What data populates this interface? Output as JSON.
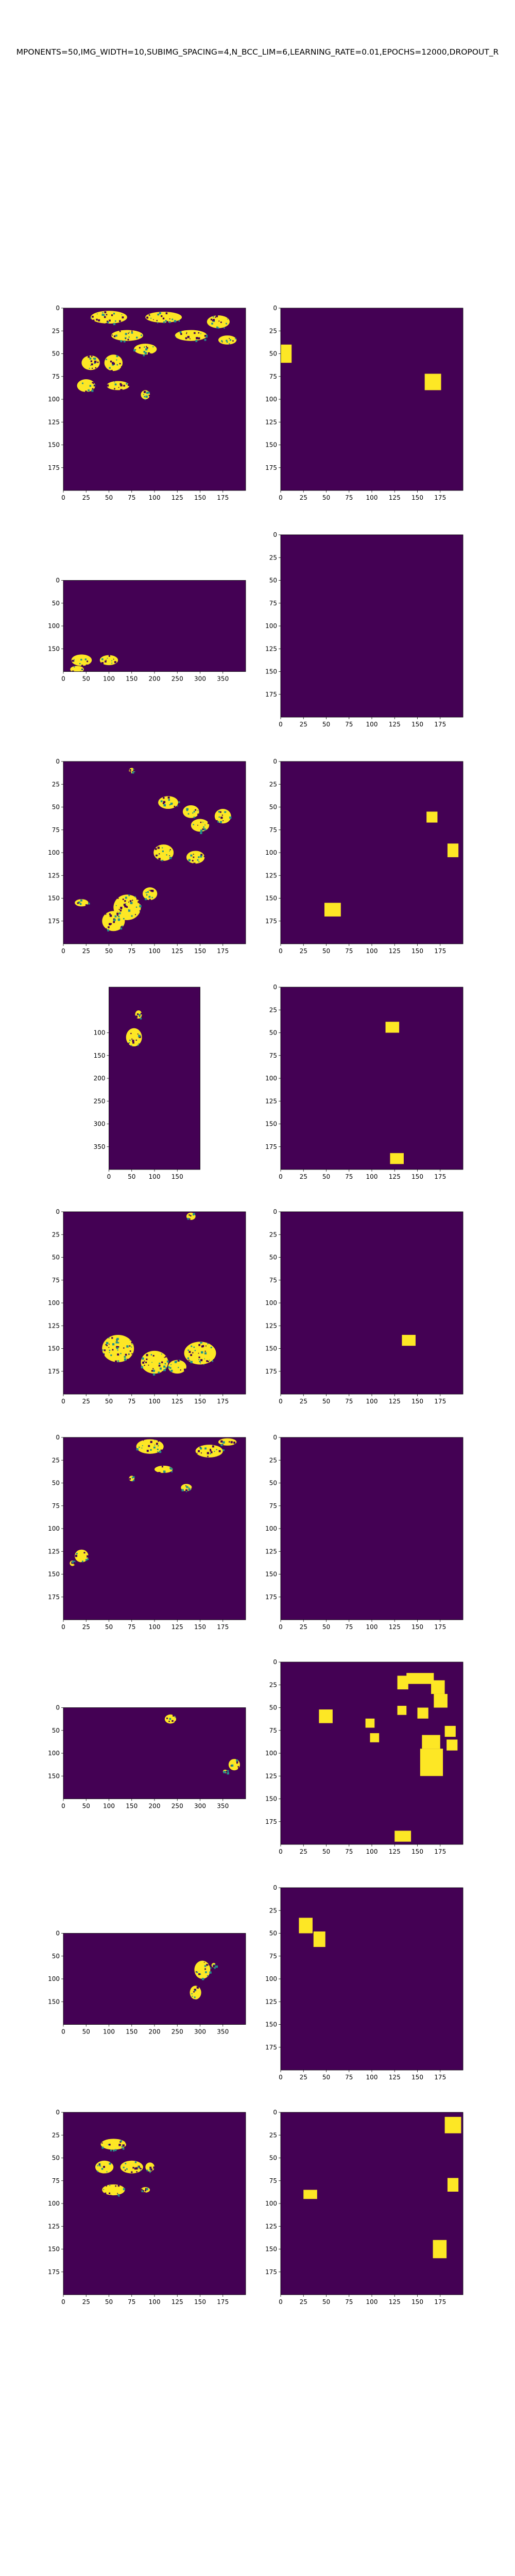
{
  "figure": {
    "suptitle": "MPONENTS=50,IMG_WIDTH=10,SUBIMG_SPACING=4,N_BCC_LIM=6,LEARNING_RATE=0.01,EPOCHS=12000,DROPOUT_R",
    "colors": {
      "background_cell": "#440154",
      "foreground_cell": "#fde725",
      "mid_cell": "#21918c"
    }
  },
  "chart_data": [
    {
      "type": "heatmap",
      "row": 1,
      "panel": "left",
      "xlim": [
        0,
        200
      ],
      "ylim": [
        200,
        0
      ],
      "xticks": [
        "0",
        "25",
        "50",
        "75",
        "100",
        "125",
        "150",
        "175"
      ],
      "yticks": [
        "0",
        "25",
        "50",
        "75",
        "100",
        "125",
        "150",
        "175"
      ],
      "blobs": [
        [
          50,
          10,
          40,
          14
        ],
        [
          110,
          10,
          40,
          12
        ],
        [
          170,
          15,
          25,
          14
        ],
        [
          70,
          30,
          35,
          12
        ],
        [
          140,
          30,
          35,
          12
        ],
        [
          180,
          35,
          20,
          10
        ],
        [
          30,
          60,
          20,
          16
        ],
        [
          55,
          60,
          20,
          18
        ],
        [
          90,
          45,
          25,
          12
        ],
        [
          25,
          85,
          20,
          14
        ],
        [
          60,
          85,
          25,
          10
        ],
        [
          90,
          95,
          10,
          10
        ]
      ]
    },
    {
      "type": "heatmap",
      "row": 1,
      "panel": "right",
      "xlim": [
        0,
        200
      ],
      "ylim": [
        200,
        0
      ],
      "xticks": [
        "0",
        "25",
        "50",
        "75",
        "100",
        "125",
        "150",
        "175"
      ],
      "yticks": [
        "0",
        "25",
        "50",
        "75",
        "100",
        "125",
        "150",
        "175"
      ],
      "rects": [
        [
          0,
          40,
          12,
          20
        ],
        [
          158,
          72,
          18,
          18
        ]
      ]
    },
    {
      "type": "heatmap",
      "row": 2,
      "panel": "left",
      "xlim": [
        0,
        400
      ],
      "ylim": [
        200,
        0
      ],
      "xticks": [
        "0",
        "50",
        "100",
        "150",
        "200",
        "250",
        "300",
        "350"
      ],
      "yticks": [
        "0",
        "50",
        "100",
        "150"
      ],
      "blobs": [
        [
          40,
          175,
          45,
          25
        ],
        [
          100,
          175,
          40,
          22
        ],
        [
          30,
          195,
          30,
          15
        ]
      ]
    },
    {
      "type": "heatmap",
      "row": 2,
      "panel": "right",
      "xlim": [
        0,
        200
      ],
      "ylim": [
        200,
        0
      ],
      "xticks": [
        "0",
        "25",
        "50",
        "75",
        "100",
        "125",
        "150",
        "175"
      ],
      "yticks": [
        "0",
        "25",
        "50",
        "75",
        "100",
        "125",
        "150",
        "175"
      ],
      "rects": []
    },
    {
      "type": "heatmap",
      "row": 3,
      "panel": "left",
      "xlim": [
        0,
        200
      ],
      "ylim": [
        200,
        0
      ],
      "xticks": [
        "0",
        "25",
        "50",
        "75",
        "100",
        "125",
        "150",
        "175"
      ],
      "yticks": [
        "0",
        "25",
        "50",
        "75",
        "100",
        "125",
        "150",
        "175"
      ],
      "blobs": [
        [
          75,
          10,
          6,
          6
        ],
        [
          115,
          45,
          22,
          14
        ],
        [
          140,
          55,
          18,
          14
        ],
        [
          175,
          60,
          18,
          16
        ],
        [
          110,
          100,
          22,
          18
        ],
        [
          145,
          105,
          20,
          14
        ],
        [
          150,
          70,
          20,
          14
        ],
        [
          70,
          160,
          30,
          28
        ],
        [
          55,
          175,
          25,
          22
        ],
        [
          20,
          155,
          15,
          8
        ],
        [
          95,
          145,
          16,
          14
        ]
      ]
    },
    {
      "type": "heatmap",
      "row": 3,
      "panel": "right",
      "xlim": [
        0,
        200
      ],
      "ylim": [
        200,
        0
      ],
      "xticks": [
        "0",
        "25",
        "50",
        "75",
        "100",
        "125",
        "150",
        "175"
      ],
      "yticks": [
        "0",
        "25",
        "50",
        "75",
        "100",
        "125",
        "150",
        "175"
      ],
      "rects": [
        [
          160,
          55,
          12,
          12
        ],
        [
          183,
          90,
          12,
          15
        ],
        [
          48,
          155,
          18,
          15
        ]
      ]
    },
    {
      "type": "heatmap",
      "row": 4,
      "panel": "left",
      "xlim": [
        0,
        200
      ],
      "ylim": [
        400,
        0
      ],
      "xticks": [
        "0",
        "50",
        "100",
        "150"
      ],
      "yticks": [
        "100",
        "150",
        "200",
        "250",
        "300",
        "350"
      ],
      "blobs": [
        [
          55,
          110,
          35,
          40
        ],
        [
          65,
          60,
          15,
          18
        ]
      ]
    },
    {
      "type": "heatmap",
      "row": 4,
      "panel": "right",
      "xlim": [
        0,
        200
      ],
      "ylim": [
        200,
        0
      ],
      "xticks": [
        "0",
        "25",
        "50",
        "75",
        "100",
        "125",
        "150",
        "175"
      ],
      "yticks": [
        "0",
        "25",
        "50",
        "75",
        "100",
        "125",
        "150",
        "175"
      ],
      "rects": [
        [
          115,
          38,
          15,
          12
        ],
        [
          120,
          182,
          15,
          12
        ]
      ]
    },
    {
      "type": "heatmap",
      "row": 5,
      "panel": "left",
      "xlim": [
        0,
        200
      ],
      "ylim": [
        200,
        0
      ],
      "xticks": [
        "0",
        "25",
        "50",
        "75",
        "100",
        "125",
        "150",
        "175"
      ],
      "yticks": [
        "0",
        "25",
        "50",
        "75",
        "100",
        "125",
        "150",
        "175"
      ],
      "blobs": [
        [
          140,
          5,
          10,
          8
        ],
        [
          60,
          150,
          35,
          30
        ],
        [
          100,
          165,
          30,
          25
        ],
        [
          150,
          155,
          35,
          25
        ],
        [
          125,
          170,
          20,
          15
        ]
      ]
    },
    {
      "type": "heatmap",
      "row": 5,
      "panel": "right",
      "xlim": [
        0,
        200
      ],
      "ylim": [
        200,
        0
      ],
      "xticks": [
        "0",
        "25",
        "50",
        "75",
        "100",
        "125",
        "150",
        "175"
      ],
      "yticks": [
        "0",
        "25",
        "50",
        "75",
        "100",
        "125",
        "150",
        "175"
      ],
      "rects": [
        [
          133,
          135,
          15,
          12
        ]
      ]
    },
    {
      "type": "heatmap",
      "row": 6,
      "panel": "left",
      "xlim": [
        0,
        200
      ],
      "ylim": [
        200,
        0
      ],
      "xticks": [
        "0",
        "25",
        "50",
        "75",
        "100",
        "125",
        "150",
        "175"
      ],
      "yticks": [
        "0",
        "25",
        "50",
        "75",
        "100",
        "125",
        "150",
        "175"
      ],
      "blobs": [
        [
          95,
          10,
          30,
          16
        ],
        [
          160,
          15,
          30,
          14
        ],
        [
          110,
          35,
          20,
          8
        ],
        [
          135,
          55,
          12,
          8
        ],
        [
          75,
          45,
          6,
          6
        ],
        [
          20,
          130,
          15,
          14
        ],
        [
          10,
          138,
          6,
          6
        ],
        [
          180,
          5,
          20,
          8
        ]
      ]
    },
    {
      "type": "heatmap",
      "row": 6,
      "panel": "right",
      "xlim": [
        0,
        200
      ],
      "ylim": [
        200,
        0
      ],
      "xticks": [
        "0",
        "25",
        "50",
        "75",
        "100",
        "125",
        "150",
        "175"
      ],
      "yticks": [
        "0",
        "25",
        "50",
        "75",
        "100",
        "125",
        "150",
        "175"
      ],
      "rects": []
    },
    {
      "type": "heatmap",
      "row": 7,
      "panel": "left",
      "xlim": [
        0,
        400
      ],
      "ylim": [
        200,
        0
      ],
      "xticks": [
        "0",
        "50",
        "100",
        "150",
        "200",
        "250",
        "300",
        "350"
      ],
      "yticks": [
        "0",
        "50",
        "100",
        "150"
      ],
      "blobs": [
        [
          235,
          25,
          25,
          20
        ],
        [
          375,
          125,
          25,
          25
        ],
        [
          355,
          140,
          10,
          8
        ]
      ]
    },
    {
      "type": "heatmap",
      "row": 7,
      "panel": "right",
      "xlim": [
        0,
        200
      ],
      "ylim": [
        200,
        0
      ],
      "xticks": [
        "0",
        "25",
        "50",
        "75",
        "100",
        "125",
        "150",
        "175"
      ],
      "yticks": [
        "0",
        "25",
        "50",
        "75",
        "100",
        "125",
        "150",
        "175"
      ],
      "rects": [
        [
          42,
          52,
          15,
          15
        ],
        [
          93,
          62,
          10,
          10
        ],
        [
          98,
          78,
          10,
          10
        ],
        [
          128,
          48,
          10,
          10
        ],
        [
          138,
          12,
          30,
          12
        ],
        [
          128,
          15,
          12,
          15
        ],
        [
          165,
          20,
          15,
          15
        ],
        [
          168,
          35,
          15,
          15
        ],
        [
          150,
          50,
          12,
          12
        ],
        [
          155,
          80,
          20,
          15
        ],
        [
          153,
          95,
          25,
          30
        ],
        [
          180,
          70,
          12,
          12
        ],
        [
          182,
          85,
          12,
          12
        ],
        [
          125,
          185,
          18,
          12
        ]
      ]
    },
    {
      "type": "heatmap",
      "row": 8,
      "panel": "left",
      "xlim": [
        0,
        400
      ],
      "ylim": [
        200,
        0
      ],
      "xticks": [
        "0",
        "50",
        "100",
        "150",
        "200",
        "250",
        "300",
        "350"
      ],
      "yticks": [
        "0",
        "50",
        "100",
        "150"
      ],
      "blobs": [
        [
          305,
          80,
          35,
          40
        ],
        [
          290,
          130,
          25,
          30
        ],
        [
          330,
          70,
          10,
          10
        ]
      ]
    },
    {
      "type": "heatmap",
      "row": 8,
      "panel": "right",
      "xlim": [
        0,
        200
      ],
      "ylim": [
        200,
        0
      ],
      "xticks": [
        "0",
        "25",
        "50",
        "75",
        "100",
        "125",
        "150",
        "175"
      ],
      "yticks": [
        "0",
        "25",
        "50",
        "75",
        "100",
        "125",
        "150",
        "175"
      ],
      "rects": [
        [
          20,
          33,
          15,
          17
        ],
        [
          36,
          48,
          13,
          17
        ]
      ]
    },
    {
      "type": "heatmap",
      "row": 9,
      "panel": "left",
      "xlim": [
        0,
        200
      ],
      "ylim": [
        200,
        0
      ],
      "xticks": [
        "0",
        "25",
        "50",
        "75",
        "100",
        "125",
        "150",
        "175"
      ],
      "yticks": [
        "0",
        "25",
        "50",
        "75",
        "100",
        "125",
        "150",
        "175"
      ],
      "blobs": [
        [
          55,
          35,
          28,
          12
        ],
        [
          45,
          60,
          20,
          14
        ],
        [
          75,
          60,
          25,
          14
        ],
        [
          55,
          85,
          25,
          12
        ],
        [
          95,
          60,
          10,
          10
        ],
        [
          90,
          85,
          10,
          6
        ]
      ]
    },
    {
      "type": "heatmap",
      "row": 9,
      "panel": "right",
      "xlim": [
        0,
        200
      ],
      "ylim": [
        200,
        0
      ],
      "xticks": [
        "0",
        "25",
        "50",
        "75",
        "100",
        "125",
        "150",
        "175"
      ],
      "yticks": [
        "0",
        "25",
        "50",
        "75",
        "100",
        "125",
        "150",
        "175"
      ],
      "rects": [
        [
          180,
          5,
          18,
          18
        ],
        [
          183,
          72,
          12,
          15
        ],
        [
          25,
          85,
          15,
          10
        ],
        [
          167,
          140,
          15,
          20
        ]
      ]
    }
  ]
}
